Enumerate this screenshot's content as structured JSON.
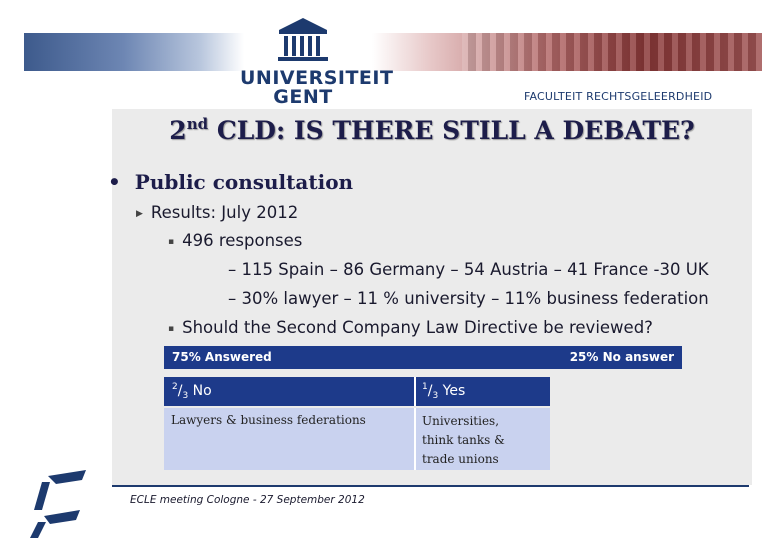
{
  "header": {
    "university_line1": "UNIVERSITEIT",
    "university_line2": "GENT",
    "faculty": "FACULTEIT RECHTSGELEERDHEID"
  },
  "slide": {
    "title_prefix": "2",
    "title_sup": "nd",
    "title_rest": " CLD: IS THERE STILL A DEBATE?",
    "bullet": "Public consultation",
    "results": "Results: July 2012",
    "responses": "496 responses",
    "countries": "– 115 Spain – 86 Germany – 54 Austria – 41 France -30 UK",
    "professions": "– 30% lawyer – 11 % university – 11% business federation",
    "question": "Should the Second Company Law Directive be reviewed?"
  },
  "table": {
    "answered": "75% Answered",
    "no_answer": "25% No answer",
    "no_num": "2",
    "no_den": "3",
    "no_label": " No",
    "yes_num": "1",
    "yes_den": "3",
    "yes_label": " Yes",
    "no_group": "Lawyers & business federations",
    "yes_group_1": "Universities,",
    "yes_group_2": "think tanks &",
    "yes_group_3": "trade unions"
  },
  "footer": {
    "text": "ECLE meeting Cologne  -  27 September 2012"
  },
  "colors": {
    "primary": "#1d3a8a",
    "light_cell": "#c9d2ef",
    "panel": "#ebebeb"
  }
}
